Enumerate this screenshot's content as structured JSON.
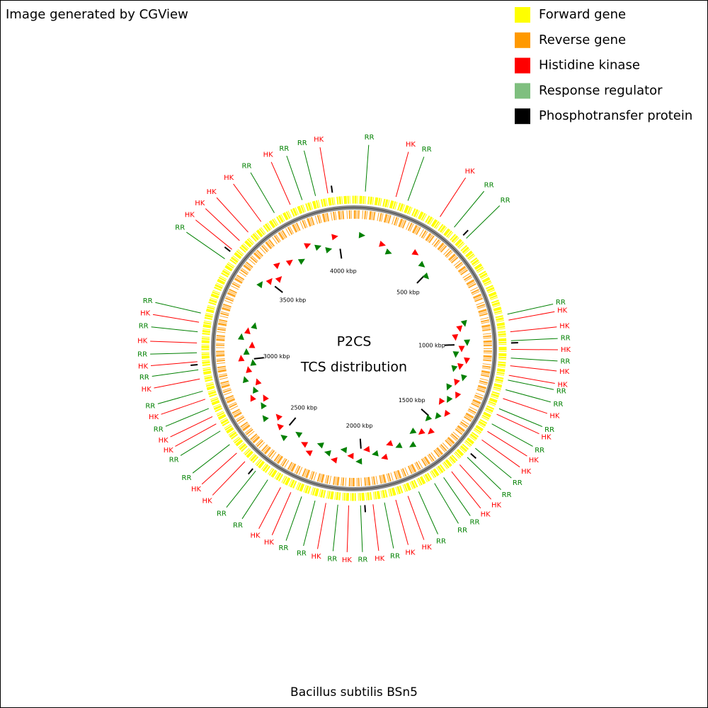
{
  "header": {
    "text": "Image generated by CGView"
  },
  "legend": [
    {
      "label": "Forward gene",
      "color": "#ffff00"
    },
    {
      "label": "Reverse gene",
      "color": "#ff9900"
    },
    {
      "label": "Histidine kinase",
      "color": "#ff0000"
    },
    {
      "label": "Response regulator",
      "color": "#7fbf7f"
    },
    {
      "label": "Phosphotransfer protein",
      "color": "#000000"
    }
  ],
  "map": {
    "title": "P2CS",
    "subtitle": "TCS distribution",
    "xlim": [
      0,
      4090
    ],
    "ticks": [
      {
        "value": 500,
        "label": "500 kbp"
      },
      {
        "value": 1000,
        "label": "1000 kbp"
      },
      {
        "value": 1500,
        "label": "1500 kbp"
      },
      {
        "value": 2000,
        "label": "2000 kbp"
      },
      {
        "value": 2500,
        "label": "2500 kbp"
      },
      {
        "value": 3000,
        "label": "3000 kbp"
      },
      {
        "value": 3500,
        "label": "3500 kbp"
      },
      {
        "value": 4000,
        "label": "4000 kbp"
      }
    ],
    "features": [
      {
        "label": "RR",
        "position": 47,
        "color": "#008000"
      },
      {
        "label": "HK",
        "position": 176,
        "color": "#ff0000"
      },
      {
        "label": "RR",
        "position": 228,
        "color": "#008000"
      },
      {
        "label": "HK",
        "position": 377,
        "color": "#ff0000"
      },
      {
        "label": "RR",
        "position": 450,
        "color": "#008000"
      },
      {
        "label": "RR",
        "position": 518,
        "color": "#008000"
      },
      {
        "label": "RR",
        "position": 880,
        "color": "#008000"
      },
      {
        "label": "HK",
        "position": 905,
        "color": "#ff0000"
      },
      {
        "label": "HK",
        "position": 954,
        "color": "#ff0000"
      },
      {
        "label": "RR",
        "position": 991,
        "color": "#008000"
      },
      {
        "label": "HK",
        "position": 1027,
        "color": "#ff0000"
      },
      {
        "label": "RR",
        "position": 1063,
        "color": "#008000"
      },
      {
        "label": "HK",
        "position": 1095,
        "color": "#ff0000"
      },
      {
        "label": "HK",
        "position": 1135,
        "color": "#ff0000"
      },
      {
        "label": "RR",
        "position": 1155,
        "color": "#008000"
      },
      {
        "label": "RR",
        "position": 1196,
        "color": "#008000"
      },
      {
        "label": "HK",
        "position": 1234,
        "color": "#ff0000"
      },
      {
        "label": "RR",
        "position": 1279,
        "color": "#008000"
      },
      {
        "label": "HK",
        "position": 1304,
        "color": "#ff0000"
      },
      {
        "label": "RR",
        "position": 1349,
        "color": "#008000"
      },
      {
        "label": "HK",
        "position": 1385,
        "color": "#ff0000"
      },
      {
        "label": "HK",
        "position": 1427,
        "color": "#ff0000"
      },
      {
        "label": "RR",
        "position": 1471,
        "color": "#008000"
      },
      {
        "label": "RR",
        "position": 1521,
        "color": "#008000"
      },
      {
        "label": "HK",
        "position": 1565,
        "color": "#ff0000"
      },
      {
        "label": "HK",
        "position": 1609,
        "color": "#ff0000"
      },
      {
        "label": "RR",
        "position": 1650,
        "color": "#008000"
      },
      {
        "label": "RR",
        "position": 1695,
        "color": "#008000"
      },
      {
        "label": "RR",
        "position": 1769,
        "color": "#008000"
      },
      {
        "label": "HK",
        "position": 1817,
        "color": "#ff0000"
      },
      {
        "label": "HK",
        "position": 1870,
        "color": "#ff0000"
      },
      {
        "label": "RR",
        "position": 1918,
        "color": "#008000"
      },
      {
        "label": "HK",
        "position": 1966,
        "color": "#ff0000"
      },
      {
        "label": "RR",
        "position": 2018,
        "color": "#008000"
      },
      {
        "label": "HK",
        "position": 2067,
        "color": "#ff0000"
      },
      {
        "label": "RR",
        "position": 2112,
        "color": "#008000"
      },
      {
        "label": "HK",
        "position": 2162,
        "color": "#ff0000"
      },
      {
        "label": "RR",
        "position": 2208,
        "color": "#008000"
      },
      {
        "label": "RR",
        "position": 2266,
        "color": "#008000"
      },
      {
        "label": "HK",
        "position": 2314,
        "color": "#ff0000"
      },
      {
        "label": "HK",
        "position": 2361,
        "color": "#ff0000"
      },
      {
        "label": "RR",
        "position": 2423,
        "color": "#008000"
      },
      {
        "label": "RR",
        "position": 2485,
        "color": "#008000"
      },
      {
        "label": "HK",
        "position": 2544,
        "color": "#ff0000"
      },
      {
        "label": "HK",
        "position": 2593,
        "color": "#ff0000"
      },
      {
        "label": "RR",
        "position": 2639,
        "color": "#008000"
      },
      {
        "label": "RR",
        "position": 2707,
        "color": "#008000"
      },
      {
        "label": "HK",
        "position": 2741,
        "color": "#ff0000"
      },
      {
        "label": "HK",
        "position": 2775,
        "color": "#ff0000"
      },
      {
        "label": "RR",
        "position": 2812,
        "color": "#008000"
      },
      {
        "label": "HK",
        "position": 2853,
        "color": "#ff0000"
      },
      {
        "label": "RR",
        "position": 2888,
        "color": "#008000"
      },
      {
        "label": "HK",
        "position": 2940,
        "color": "#ff0000"
      },
      {
        "label": "RR",
        "position": 2978,
        "color": "#008000"
      },
      {
        "label": "HK",
        "position": 3012,
        "color": "#ff0000"
      },
      {
        "label": "RR",
        "position": 3049,
        "color": "#008000"
      },
      {
        "label": "HK",
        "position": 3090,
        "color": "#ff0000"
      },
      {
        "label": "RR",
        "position": 3136,
        "color": "#008000"
      },
      {
        "label": "HK",
        "position": 3176,
        "color": "#ff0000"
      },
      {
        "label": "RR",
        "position": 3215,
        "color": "#008000"
      },
      {
        "label": "RR",
        "position": 3462,
        "color": "#008000"
      },
      {
        "label": "HK",
        "position": 3511,
        "color": "#ff0000"
      },
      {
        "label": "HK",
        "position": 3559,
        "color": "#ff0000"
      },
      {
        "label": "HK",
        "position": 3609,
        "color": "#ff0000"
      },
      {
        "label": "HK",
        "position": 3678,
        "color": "#ff0000"
      },
      {
        "label": "RR",
        "position": 3744,
        "color": "#008000"
      },
      {
        "label": "HK",
        "position": 3818,
        "color": "#ff0000"
      },
      {
        "label": "RR",
        "position": 3871,
        "color": "#008000"
      },
      {
        "label": "RR",
        "position": 3929,
        "color": "#008000"
      },
      {
        "label": "HK",
        "position": 3981,
        "color": "#ff0000"
      }
    ]
  },
  "footer": {
    "text": "Bacillus subtilis BSn5"
  }
}
